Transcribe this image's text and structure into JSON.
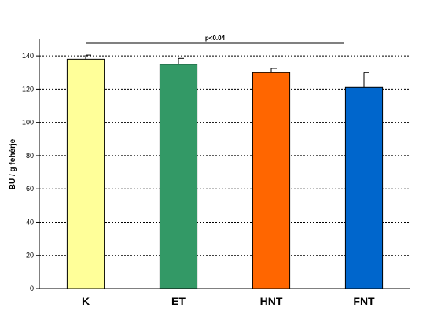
{
  "chart_data": {
    "type": "bar",
    "categories": [
      "K",
      "ET",
      "HNT",
      "FNT"
    ],
    "values": [
      138,
      135,
      130,
      121
    ],
    "errors": [
      2.5,
      3.5,
      2.5,
      9
    ],
    "colors": [
      "#ffff99",
      "#339966",
      "#ff6600",
      "#0066cc"
    ],
    "ylabel": "BU / g fehérje",
    "ylim": [
      0,
      150
    ],
    "yticks": [
      0,
      20,
      40,
      60,
      80,
      100,
      120,
      140
    ],
    "grid": true,
    "annotation": "p<0.04"
  }
}
